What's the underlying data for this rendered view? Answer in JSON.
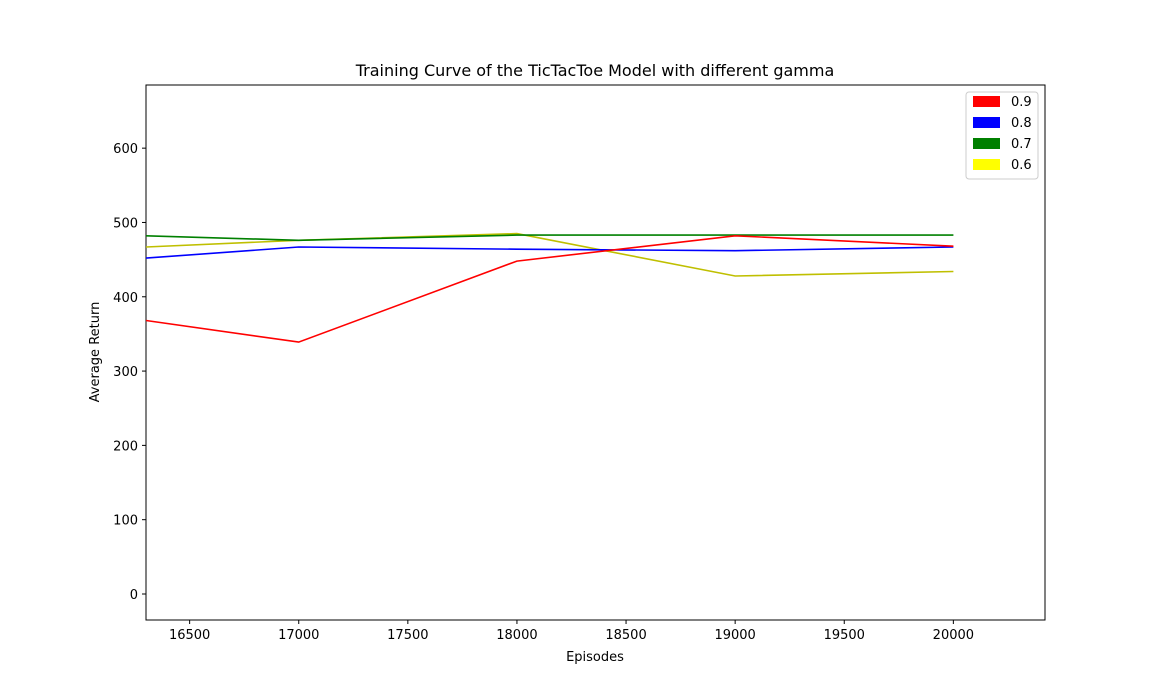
{
  "chart_data": {
    "type": "line",
    "title": "Training Curve of the TicTacToe Model with different gamma",
    "xlabel": "Episodes",
    "ylabel": "Average Return",
    "xlim": [
      16300,
      20420
    ],
    "ylim": [
      -35,
      685
    ],
    "xticks": [
      16500,
      17000,
      17500,
      18000,
      18500,
      19000,
      19500,
      20000
    ],
    "yticks": [
      0,
      100,
      200,
      300,
      400,
      500,
      600
    ],
    "grid": false,
    "legend_position": "top-right",
    "x": [
      16300,
      17000,
      18000,
      19000,
      20000
    ],
    "series": [
      {
        "name": "0.9",
        "color": "#ff0000",
        "legend_color": "#ff0000",
        "values": [
          368,
          339,
          448,
          482,
          468
        ]
      },
      {
        "name": "0.8",
        "color": "#0000ff",
        "legend_color": "#0000ff",
        "values": [
          452,
          467,
          464,
          462,
          467
        ]
      },
      {
        "name": "0.7",
        "color": "#008000",
        "legend_color": "#008000",
        "values": [
          482,
          476,
          483,
          483,
          483
        ]
      },
      {
        "name": "0.6",
        "color": "#bfbf00",
        "legend_color": "#ffff00",
        "values": [
          467,
          476,
          485,
          428,
          434
        ]
      }
    ]
  }
}
